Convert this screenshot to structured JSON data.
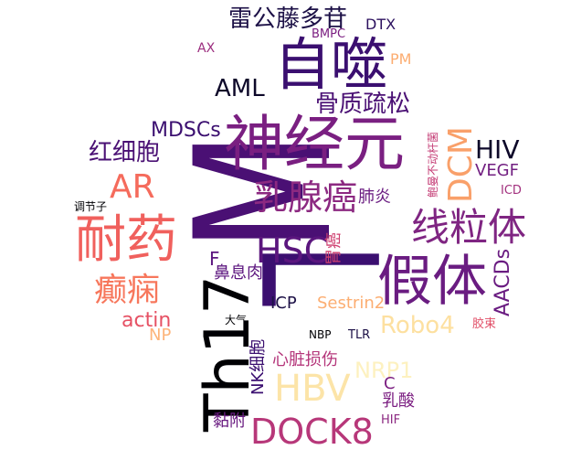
{
  "words": [
    {
      "id": "M",
      "text": "M",
      "color": "#4a1074"
    },
    {
      "id": "L",
      "text": "L",
      "color": "#3b0f70"
    },
    {
      "id": "Th17",
      "text": "Th17",
      "color": "#000004"
    },
    {
      "id": "shenjingyuan",
      "text": "神经元",
      "color": "#7a1f81"
    },
    {
      "id": "zishi",
      "text": "自噬",
      "color": "#3b0f70"
    },
    {
      "id": "jiati",
      "text": "假体",
      "color": "#6a1c81"
    },
    {
      "id": "naiyao",
      "text": "耐药",
      "color": "#f0605d"
    },
    {
      "id": "xianlitti",
      "text": "线粒体",
      "color": "#7f2582"
    },
    {
      "id": "rushuxian",
      "text": "乳腺癌",
      "color": "#8c2981"
    },
    {
      "id": "HSC",
      "text": "HSC",
      "color": "#5b167e"
    },
    {
      "id": "DOCK8",
      "text": "DOCK8",
      "color": "#b73779"
    },
    {
      "id": "HBV",
      "text": "HBV",
      "color": "#fce4a8"
    },
    {
      "id": "DCM",
      "text": "DCM",
      "color": "#f9a06a"
    },
    {
      "id": "AR",
      "text": "AR",
      "color": "#f56b5c"
    },
    {
      "id": "dianxian",
      "text": "癫痫",
      "color": "#f7775c"
    },
    {
      "id": "AML",
      "text": "AML",
      "color": "#0d0829"
    },
    {
      "id": "leigongteng",
      "text": "雷公藤多苷",
      "color": "#1d1147"
    },
    {
      "id": "HIV",
      "text": "HIV",
      "color": "#0d0829"
    },
    {
      "id": "guzhishusong",
      "text": "骨质疏松",
      "color": "#4a1074"
    },
    {
      "id": "MDSCs",
      "text": "MDSCs",
      "color": "#3b0f70"
    },
    {
      "id": "hongxibao",
      "text": "红细胞",
      "color": "#4a1074"
    },
    {
      "id": "Robo4",
      "text": "Robo4",
      "color": "#fde0a0"
    },
    {
      "id": "NRP1",
      "text": "NRP1",
      "color": "#fdf1c0"
    },
    {
      "id": "AACDs",
      "text": "AACDs",
      "color": "#6a1c81"
    },
    {
      "id": "actin",
      "text": "actin",
      "color": "#e65164"
    },
    {
      "id": "VEGF",
      "text": "VEGF",
      "color": "#721f81"
    },
    {
      "id": "bixirou",
      "text": "鼻息肉",
      "color": "#5c167f"
    },
    {
      "id": "ICP",
      "text": "ICP",
      "color": "#1d1147"
    },
    {
      "id": "Sestrin2",
      "text": "Sestrin2",
      "color": "#fcae72"
    },
    {
      "id": "xinzang",
      "text": "心脏损伤",
      "color": "#b4357a"
    },
    {
      "id": "NKxibao",
      "text": "NK细胞",
      "color": "#3b0f70"
    },
    {
      "id": "nianfu",
      "text": "黏附",
      "color": "#6a1c81"
    },
    {
      "id": "rusuan",
      "text": "乳酸",
      "color": "#7b1e81"
    },
    {
      "id": "weiai",
      "text": "胃癌",
      "color": "#cf4070"
    },
    {
      "id": "feiyan",
      "text": "肺炎",
      "color": "#6a1c81"
    },
    {
      "id": "F",
      "text": "F",
      "color": "#5c167f"
    },
    {
      "id": "C",
      "text": "C",
      "color": "#7b1e81"
    },
    {
      "id": "NP",
      "text": "NP",
      "color": "#fdb47a"
    },
    {
      "id": "PM",
      "text": "PM",
      "color": "#fcac70"
    },
    {
      "id": "DTX",
      "text": "DTX",
      "color": "#2c115f"
    },
    {
      "id": "BMPC",
      "text": "BMPC",
      "color": "#7b1e81"
    },
    {
      "id": "AX",
      "text": "AX",
      "color": "#9c2e7f"
    },
    {
      "id": "ICD",
      "text": "ICD",
      "color": "#a2307e"
    },
    {
      "id": "baoman",
      "text": "鲍曼不动杆菌",
      "color": "#c43c75"
    },
    {
      "id": "tiaojiezi",
      "text": "调节子",
      "color": "#000004"
    },
    {
      "id": "daqi",
      "text": "大气",
      "color": "#000004"
    },
    {
      "id": "NBP",
      "text": "NBP",
      "color": "#000004"
    },
    {
      "id": "TLR",
      "text": "TLR",
      "color": "#1d1147"
    },
    {
      "id": "jiaoshu",
      "text": "胶束",
      "color": "#e14d66"
    },
    {
      "id": "HIF",
      "text": "HIF",
      "color": "#8c2981"
    }
  ]
}
